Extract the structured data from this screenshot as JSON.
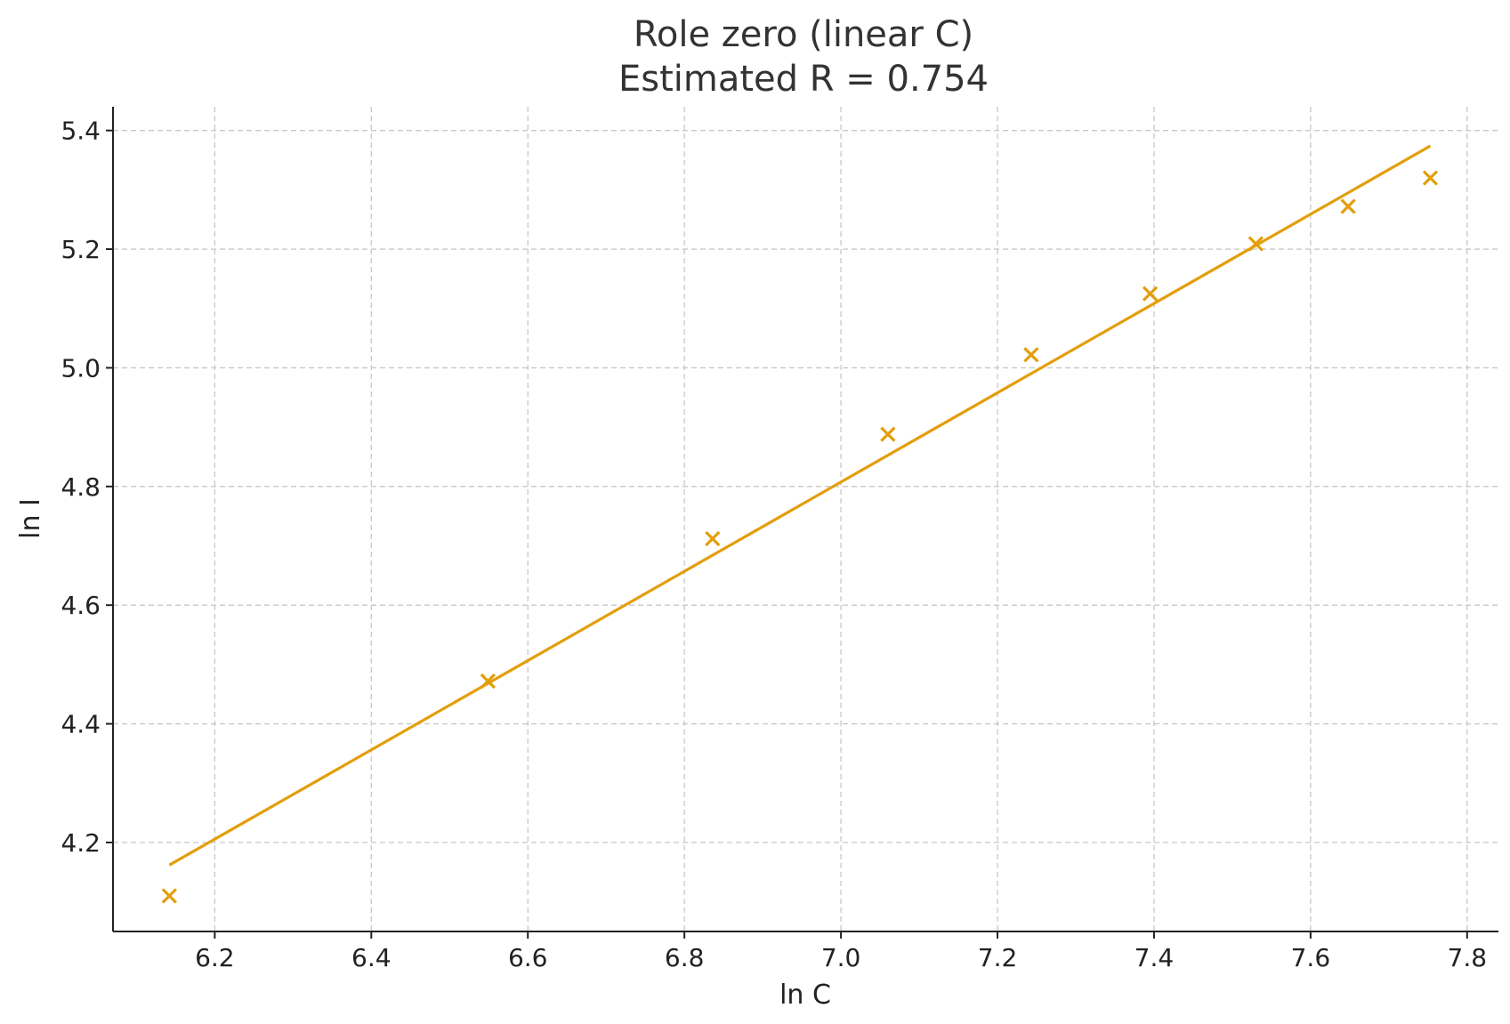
{
  "chart_data": {
    "type": "scatter",
    "title": "Role zero (linear C)",
    "subtitle": "Estimated R = 0.754",
    "xlabel": "ln C",
    "ylabel": "ln I",
    "xlim": [
      6.07,
      7.84
    ],
    "ylim": [
      4.05,
      5.44
    ],
    "xticks": [
      6.2,
      6.4,
      6.6,
      6.8,
      7.0,
      7.2,
      7.4,
      7.6,
      7.8
    ],
    "xtick_labels": [
      "6.2",
      "6.4",
      "6.6",
      "6.8",
      "7.0",
      "7.2",
      "7.4",
      "7.6",
      "7.8"
    ],
    "yticks": [
      4.2,
      4.4,
      4.6,
      4.8,
      5.0,
      5.2,
      5.4
    ],
    "ytick_labels": [
      "4.2",
      "4.4",
      "4.6",
      "4.8",
      "5.0",
      "5.2",
      "5.4"
    ],
    "grid": true,
    "color": "#E39E0B",
    "series": [
      {
        "marker": "x",
        "x": [
          6.142,
          6.549,
          6.836,
          7.06,
          7.243,
          7.395,
          7.53,
          7.648,
          7.753
        ],
        "y": [
          4.11,
          4.472,
          4.712,
          4.888,
          5.022,
          5.125,
          5.209,
          5.272,
          5.32
        ]
      },
      {
        "marker": "line",
        "x": [
          6.142,
          7.753
        ],
        "y": [
          4.162,
          5.374
        ]
      }
    ]
  }
}
